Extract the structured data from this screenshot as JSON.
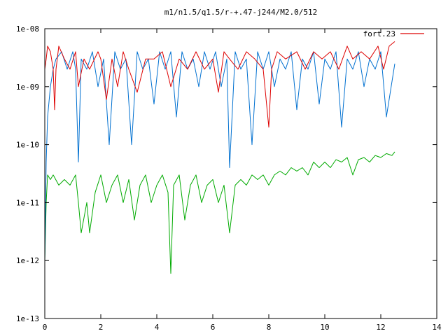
{
  "chart_data": {
    "type": "line",
    "title": "m1/n1.5/q1.5/r-+.47-j244/M2.0/512",
    "xlabel": "",
    "ylabel": "",
    "xlim": [
      0,
      14
    ],
    "ylim": [
      1e-13,
      1e-08
    ],
    "yscale": "log",
    "grid": false,
    "legend_position": "top-right",
    "x_ticks": [
      "0",
      "2",
      "4",
      "6",
      "8",
      "10",
      "12",
      "14"
    ],
    "y_ticks": [
      "1e-13",
      "1e-12",
      "1e-11",
      "1e-10",
      "1e-09",
      "1e-08"
    ],
    "colors": {
      "red": "#dd0000",
      "blue": "#0070d0",
      "green": "#00aa00"
    },
    "series": [
      {
        "name": "fort.23",
        "color": "#dd0000",
        "x": [
          0.0,
          0.05,
          0.1,
          0.2,
          0.3,
          0.35,
          0.4,
          0.5,
          0.7,
          0.9,
          1.1,
          1.2,
          1.4,
          1.6,
          1.9,
          2.0,
          2.2,
          2.4,
          2.6,
          2.8,
          3.0,
          3.3,
          3.6,
          3.9,
          4.2,
          4.5,
          4.8,
          5.1,
          5.4,
          5.7,
          6.0,
          6.2,
          6.4,
          6.6,
          6.9,
          7.2,
          7.5,
          7.8,
          8.0,
          8.1,
          8.3,
          8.6,
          9.0,
          9.3,
          9.6,
          9.9,
          10.2,
          10.5,
          10.8,
          11.0,
          11.3,
          11.6,
          11.9,
          12.1,
          12.3,
          12.5
        ],
        "y": [
          2e-09,
          3e-09,
          5e-09,
          4e-09,
          2e-09,
          4e-10,
          2e-09,
          5e-09,
          3e-09,
          2e-09,
          4e-09,
          1e-09,
          3e-09,
          2e-09,
          4e-09,
          3e-09,
          6e-10,
          3e-09,
          1e-09,
          4e-09,
          2e-09,
          8e-10,
          3e-09,
          3e-09,
          4e-09,
          1e-09,
          3e-09,
          2e-09,
          4e-09,
          2e-09,
          3e-09,
          8e-10,
          4e-09,
          3e-09,
          2e-09,
          4e-09,
          3e-09,
          2e-09,
          2e-10,
          2e-09,
          4e-09,
          3e-09,
          4e-09,
          2e-09,
          4e-09,
          3e-09,
          4e-09,
          2e-09,
          5e-09,
          3e-09,
          4e-09,
          3e-09,
          5e-09,
          2e-09,
          5e-09,
          6e-09
        ]
      },
      {
        "color": "#0070d0",
        "x": [
          0.0,
          0.05,
          0.1,
          0.2,
          0.3,
          0.4,
          0.6,
          0.8,
          1.0,
          1.1,
          1.2,
          1.3,
          1.5,
          1.7,
          1.9,
          2.1,
          2.3,
          2.5,
          2.7,
          2.9,
          3.1,
          3.3,
          3.5,
          3.7,
          3.9,
          4.1,
          4.3,
          4.5,
          4.7,
          4.9,
          5.1,
          5.3,
          5.5,
          5.7,
          5.9,
          6.1,
          6.3,
          6.5,
          6.6,
          6.8,
          7.0,
          7.2,
          7.4,
          7.6,
          7.8,
          8.0,
          8.2,
          8.4,
          8.6,
          8.8,
          9.0,
          9.2,
          9.4,
          9.6,
          9.8,
          10.0,
          10.2,
          10.4,
          10.6,
          10.8,
          11.0,
          11.2,
          11.4,
          11.6,
          11.8,
          12.0,
          12.2,
          12.5
        ],
        "y": [
          1e-12,
          5e-11,
          3e-10,
          1e-09,
          2e-09,
          3e-09,
          4e-09,
          2e-09,
          4e-09,
          2e-09,
          5e-11,
          3e-09,
          2e-09,
          4e-09,
          1e-09,
          3e-09,
          1e-10,
          4e-09,
          2e-09,
          3e-09,
          1e-10,
          4e-09,
          2e-09,
          3e-09,
          5e-10,
          4e-09,
          2e-09,
          4e-09,
          3e-10,
          4e-09,
          2e-09,
          3e-09,
          1e-09,
          4e-09,
          2e-09,
          4e-09,
          1e-09,
          3e-09,
          4e-11,
          4e-09,
          2e-09,
          3e-09,
          1e-10,
          4e-09,
          2e-09,
          4e-09,
          1e-09,
          3e-09,
          2e-09,
          4e-09,
          4e-10,
          3e-09,
          2e-09,
          4e-09,
          5e-10,
          3e-09,
          2e-09,
          4e-09,
          2e-10,
          3e-09,
          2e-09,
          4e-09,
          1e-09,
          3e-09,
          2e-09,
          4e-09,
          3e-10,
          2.5e-09
        ]
      },
      {
        "color": "#00aa00",
        "x": [
          0.0,
          0.05,
          0.1,
          0.2,
          0.3,
          0.5,
          0.7,
          0.9,
          1.1,
          1.2,
          1.3,
          1.5,
          1.6,
          1.8,
          2.0,
          2.2,
          2.4,
          2.6,
          2.8,
          3.0,
          3.2,
          3.4,
          3.6,
          3.8,
          4.0,
          4.2,
          4.4,
          4.5,
          4.6,
          4.8,
          5.0,
          5.2,
          5.4,
          5.6,
          5.8,
          6.0,
          6.2,
          6.4,
          6.6,
          6.8,
          7.0,
          7.2,
          7.4,
          7.6,
          7.8,
          8.0,
          8.2,
          8.4,
          8.6,
          8.8,
          9.0,
          9.2,
          9.4,
          9.6,
          9.8,
          10.0,
          10.2,
          10.4,
          10.6,
          10.8,
          11.0,
          11.2,
          11.4,
          11.6,
          11.8,
          12.0,
          12.2,
          12.4,
          12.5
        ],
        "y": [
          1e-12,
          1e-11,
          3e-11,
          2.5e-11,
          3e-11,
          2e-11,
          2.5e-11,
          2e-11,
          3e-11,
          1e-11,
          3e-12,
          1e-11,
          3e-12,
          1.5e-11,
          3e-11,
          1e-11,
          2e-11,
          3e-11,
          1e-11,
          2.5e-11,
          5e-12,
          2e-11,
          3e-11,
          1e-11,
          2e-11,
          3e-11,
          1.5e-11,
          6e-13,
          2e-11,
          3e-11,
          5e-12,
          2e-11,
          3e-11,
          1e-11,
          2e-11,
          2.5e-11,
          1e-11,
          2e-11,
          3e-12,
          2e-11,
          2.5e-11,
          2e-11,
          3e-11,
          2.5e-11,
          3e-11,
          2e-11,
          3e-11,
          3.5e-11,
          3e-11,
          4e-11,
          3.5e-11,
          4e-11,
          3e-11,
          5e-11,
          4e-11,
          5e-11,
          4e-11,
          5.5e-11,
          5e-11,
          6e-11,
          3e-11,
          5.5e-11,
          6e-11,
          5e-11,
          6.5e-11,
          6e-11,
          7e-11,
          6.5e-11,
          7.5e-11
        ]
      }
    ]
  }
}
